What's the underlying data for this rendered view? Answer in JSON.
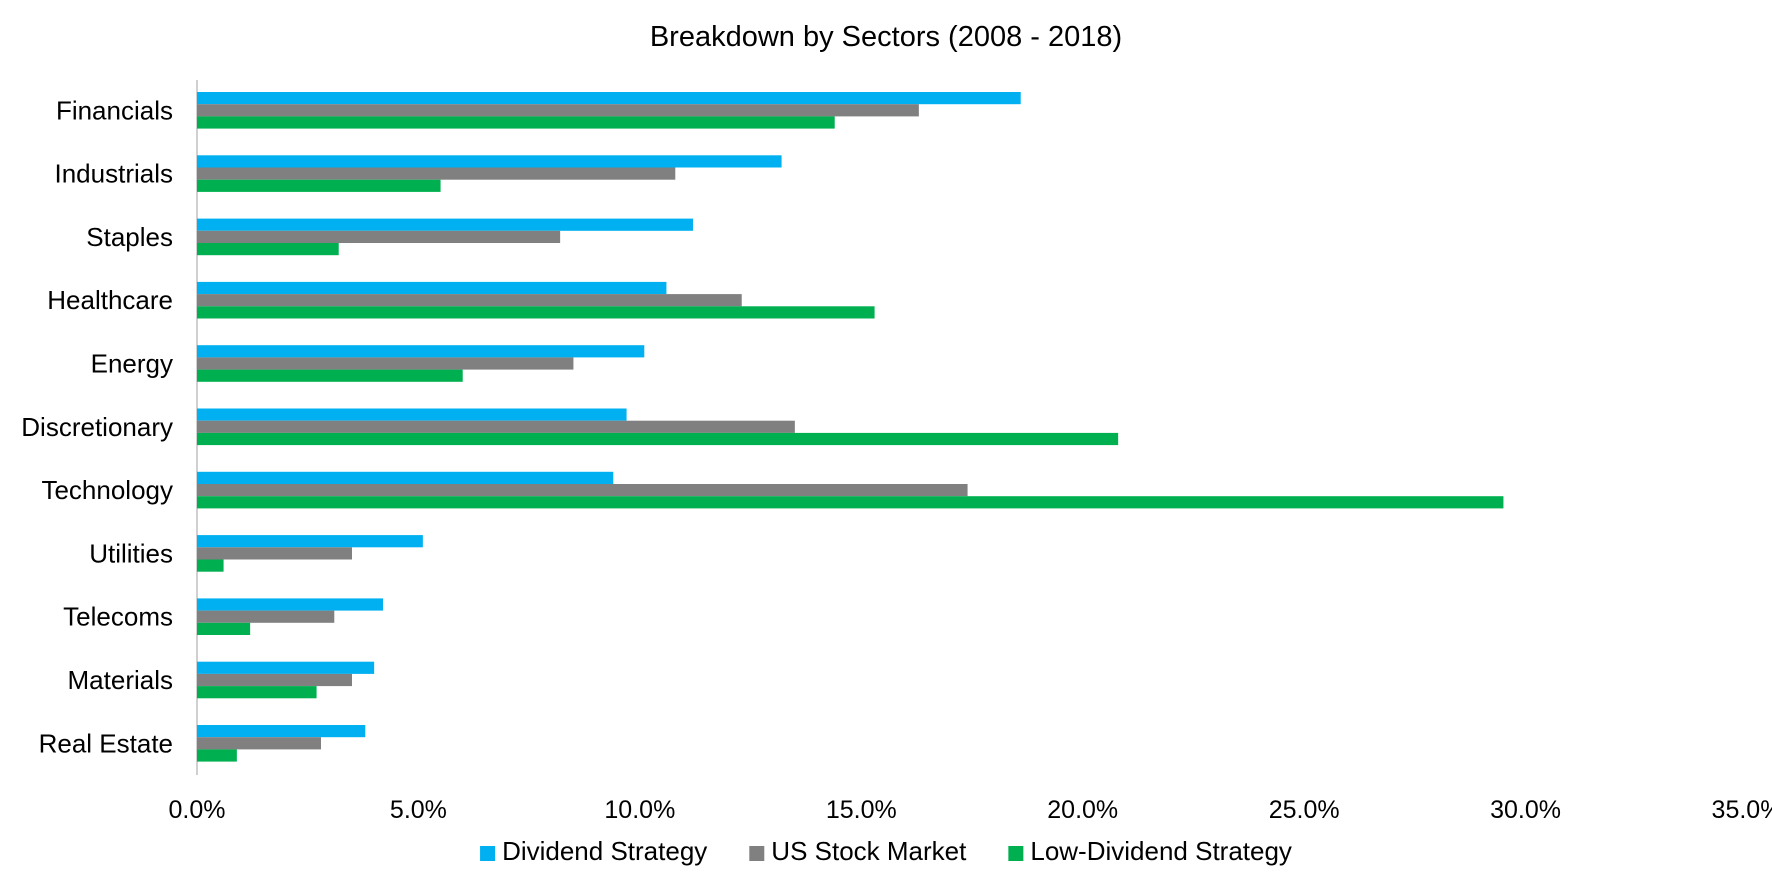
{
  "chart_data": {
    "type": "bar",
    "orientation": "horizontal",
    "title": "Breakdown by Sectors (2008 - 2018)",
    "xlabel": "",
    "ylabel": "",
    "xlim": [
      0,
      35
    ],
    "x_ticks": [
      "0.0%",
      "5.0%",
      "10.0%",
      "15.0%",
      "20.0%",
      "25.0%",
      "30.0%",
      "35.0%"
    ],
    "grid": false,
    "legend_position": "bottom",
    "categories": [
      "Financials",
      "Industrials",
      "Staples",
      "Healthcare",
      "Energy",
      "Discretionary",
      "Technology",
      "Utilities",
      "Telecoms",
      "Materials",
      "Real Estate"
    ],
    "series": [
      {
        "name": "Dividend Strategy",
        "color": "#00b0f0",
        "values": [
          18.6,
          13.2,
          11.2,
          10.6,
          10.1,
          9.7,
          9.4,
          5.1,
          4.2,
          4.0,
          3.8
        ]
      },
      {
        "name": "US Stock Market",
        "color": "#808080",
        "values": [
          16.3,
          10.8,
          8.2,
          12.3,
          8.5,
          13.5,
          17.4,
          3.5,
          3.1,
          3.5,
          2.8
        ]
      },
      {
        "name": "Low-Dividend Strategy",
        "color": "#00b050",
        "values": [
          14.4,
          5.5,
          3.2,
          15.3,
          6.0,
          20.8,
          29.5,
          0.6,
          1.2,
          2.7,
          0.9
        ]
      }
    ]
  }
}
